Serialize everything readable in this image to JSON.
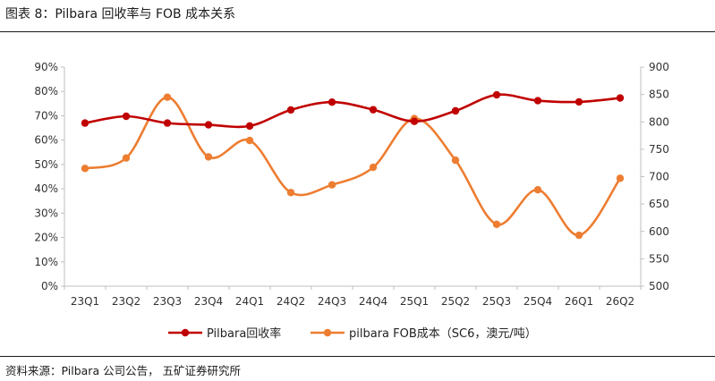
{
  "figure": {
    "title": "图表 8：Pilbara 回收率与 FOB 成本关系",
    "source": "资料来源：Pilbara 公司公告， 五矿证券研究所"
  },
  "colors": {
    "recovery": "#c00000",
    "fob": "#ed7d31",
    "axis": "#bfbfbf"
  },
  "chart_data": {
    "type": "line",
    "title": "",
    "categories": [
      "23Q1",
      "23Q2",
      "23Q3",
      "23Q4",
      "24Q1",
      "24Q2",
      "24Q3",
      "24Q4",
      "25Q1",
      "25Q2",
      "25Q3",
      "25Q4",
      "26Q1",
      "26Q2"
    ],
    "series": [
      {
        "name": "Pilbara回收率",
        "axis": "left",
        "unit": "%",
        "values": [
          67,
          69.8,
          67,
          66.3,
          65.8,
          72.4,
          75.6,
          72.5,
          67.7,
          72,
          78.6,
          76.2,
          75.7,
          77.3
        ]
      },
      {
        "name": "pilbara FOB成本（SC6，澳元/吨）",
        "axis": "right",
        "values": [
          715,
          734,
          845,
          736,
          766,
          671,
          685,
          717,
          806,
          730,
          613,
          676,
          593,
          697
        ]
      }
    ],
    "left_axis": {
      "ylim": [
        0,
        90
      ],
      "ticks": [
        "0%",
        "10%",
        "20%",
        "30%",
        "40%",
        "50%",
        "60%",
        "70%",
        "80%",
        "90%"
      ]
    },
    "right_axis": {
      "ylim": [
        500,
        900
      ],
      "ticks": [
        "500",
        "550",
        "600",
        "650",
        "700",
        "750",
        "800",
        "850",
        "900"
      ]
    },
    "grid": false,
    "legend_position": "bottom"
  }
}
